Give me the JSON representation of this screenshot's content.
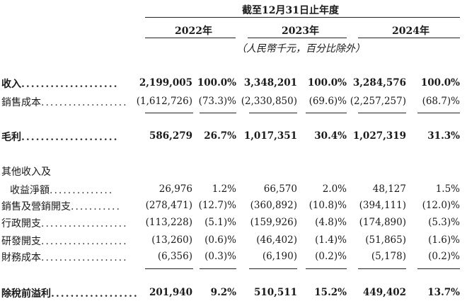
{
  "header": {
    "period": "截至12月31日止年度",
    "years": [
      "2022年",
      "2023年",
      "2024年"
    ],
    "unit_note": "（人民幣千元，百分比除外）"
  },
  "rows": [
    {
      "label": "收入",
      "dots": "....................",
      "bold": true,
      "values": [
        "2,199,005",
        "100.0%",
        "3,348,201",
        "100.0%",
        "3,284,576",
        "100.0%"
      ]
    },
    {
      "label": "銷售成本",
      "dots": "...................",
      "bold": false,
      "values": [
        "(1,612,726)",
        "(73.3)%",
        "(2,330,850)",
        "(69.6)%",
        "(2,257,257)",
        "(68.7)%"
      ]
    },
    {
      "label": "毛利",
      "dots": "....................",
      "bold": true,
      "values": [
        "586,279",
        "26.7%",
        "1,017,351",
        "30.4%",
        "1,027,319",
        "31.3%"
      ]
    },
    {
      "label": "其他收入及",
      "dots": "",
      "bold": false,
      "values": [
        "",
        "",
        "",
        "",
        "",
        ""
      ]
    },
    {
      "label": "收益淨額",
      "dots": "..............",
      "bold": false,
      "values": [
        "26,976",
        "1.2%",
        "66,570",
        "2.0%",
        "48,127",
        "1.5%"
      ]
    },
    {
      "label": "銷售及營銷開支",
      "dots": "...........",
      "bold": false,
      "values": [
        "(278,471)",
        "(12.7)%",
        "(360,892)",
        "(10.8)%",
        "(394,111)",
        "(12.0)%"
      ]
    },
    {
      "label": "行政開支",
      "dots": "...................",
      "bold": false,
      "values": [
        "(113,228)",
        "(5.1)%",
        "(159,926)",
        "(4.8)%",
        "(174,890)",
        "(5.3)%"
      ]
    },
    {
      "label": "研發開支",
      "dots": "...................",
      "bold": false,
      "values": [
        "(13,260)",
        "(0.6)%",
        "(46,402)",
        "(1.4)%",
        "(51,865)",
        "(1.6)%"
      ]
    },
    {
      "label": "財務成本",
      "dots": "...................",
      "bold": false,
      "values": [
        "(6,356)",
        "(0.3)%",
        "(6,190)",
        "(0.2)%",
        "(5,178)",
        "(0.2)%"
      ]
    },
    {
      "label": "除稅前溢利",
      "dots": "..................",
      "bold": true,
      "values": [
        "201,940",
        "9.2%",
        "510,511",
        "15.2%",
        "449,402",
        "13.7%"
      ]
    }
  ]
}
